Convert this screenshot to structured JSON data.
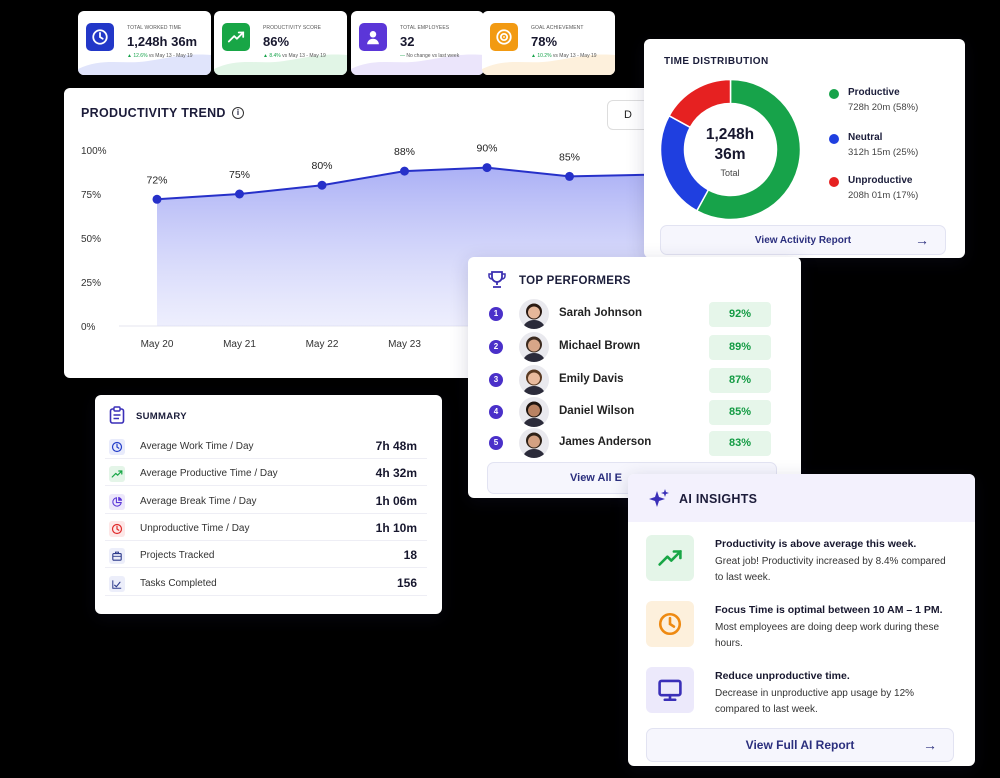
{
  "kpis": [
    {
      "label": "TOTAL WORKED TIME",
      "value": "1,248h 36m",
      "trend_up": "▲ 12.6%",
      "trend_text": "vs May 13 - May 19",
      "icon": "clock-icon",
      "color": "#2237c8",
      "wave": "#e0e4fb"
    },
    {
      "label": "PRODUCTIVITY SCORE",
      "value": "86%",
      "trend_up": "▲ 8.4%",
      "trend_text": "vs May 13 - May 19",
      "icon": "trend-up-icon",
      "color": "#18a646",
      "wave": "#e1f5e6"
    },
    {
      "label": "TOTAL EMPLOYEES",
      "value": "32",
      "trend_up": "—",
      "trend_text": "No change vs last week",
      "icon": "user-icon",
      "color": "#5b36d8",
      "wave": "#ebe5fb"
    },
    {
      "label": "GOAL ACHIEVEMENT",
      "value": "78%",
      "trend_up": "▲ 10.2%",
      "trend_text": "vs May 13 - May 19",
      "icon": "target-icon",
      "color": "#f29a12",
      "wave": "#fdf0dc"
    }
  ],
  "trend": {
    "title": "PRODUCTIVITY TREND",
    "range_button": "D",
    "chart_data": {
      "type": "area",
      "categories": [
        "May 20",
        "May 21",
        "May 22",
        "May 23",
        "",
        "",
        ""
      ],
      "values": [
        72,
        75,
        80,
        88,
        90,
        85,
        86
      ],
      "labels": [
        "72%",
        "75%",
        "80%",
        "88%",
        "90%",
        "85%",
        ""
      ],
      "yticks": [
        "0%",
        "25%",
        "50%",
        "75%",
        "100%"
      ],
      "ylim": [
        0,
        100
      ]
    }
  },
  "distribution": {
    "title": "TIME DISTRIBUTION",
    "total_value_line1": "1,248h",
    "total_value_line2": "36m",
    "total_label": "Total",
    "chart_data": {
      "type": "pie",
      "slices": [
        {
          "name": "Productive",
          "detail": "728h 20m (58%)",
          "value": 58,
          "color": "#17a34a"
        },
        {
          "name": "Neutral",
          "detail": "312h 15m (25%)",
          "value": 25,
          "color": "#1f3fe0"
        },
        {
          "name": "Unproductive",
          "detail": "208h 01m (17%)",
          "value": 17,
          "color": "#e62121"
        }
      ]
    },
    "button": "View Activity Report"
  },
  "performers": {
    "title": "TOP PERFORMERS",
    "rows": [
      {
        "rank": "1",
        "name": "Sarah Johnson",
        "score": "92%",
        "skin": "#e6b79a",
        "hair": "#2a1a12"
      },
      {
        "rank": "2",
        "name": "Michael Brown",
        "score": "89%",
        "skin": "#d7a688",
        "hair": "#3b2a1f"
      },
      {
        "rank": "3",
        "name": "Emily Davis",
        "score": "87%",
        "skin": "#e9bb9e",
        "hair": "#5a3a22"
      },
      {
        "rank": "4",
        "name": "Daniel Wilson",
        "score": "85%",
        "skin": "#b98262",
        "hair": "#1f1510"
      },
      {
        "rank": "5",
        "name": "James Anderson",
        "score": "83%",
        "skin": "#d3a182",
        "hair": "#2f2218"
      }
    ],
    "button": "View All E"
  },
  "summary": {
    "title": "SUMMARY",
    "rows": [
      {
        "label": "Average Work Time / Day",
        "value": "7h 48m",
        "icon": "clock-icon",
        "color": "#2640c9",
        "bg": "#e8ebfb"
      },
      {
        "label": "Average Productive Time / Day",
        "value": "4h 32m",
        "icon": "trend-up-icon",
        "color": "#18a646",
        "bg": "#e4f5e8"
      },
      {
        "label": "Average Break Time / Day",
        "value": "1h 06m",
        "icon": "pie-icon",
        "color": "#5b36d8",
        "bg": "#ece7fb"
      },
      {
        "label": "Unproductive Time / Day",
        "value": "1h 10m",
        "icon": "clock-icon",
        "color": "#e02b2b",
        "bg": "#fde7e7"
      },
      {
        "label": "Projects Tracked",
        "value": "18",
        "icon": "briefcase-icon",
        "color": "#2d3a8c",
        "bg": "#eceefa"
      },
      {
        "label": "Tasks Completed",
        "value": "156",
        "icon": "checklist-icon",
        "color": "#2d3a8c",
        "bg": "#eceefa"
      }
    ]
  },
  "ai": {
    "title": "AI INSIGHTS",
    "items": [
      {
        "heading": "Productivity is above average this week.",
        "text": "Great job! Productivity increased by 8.4% compared to last week.",
        "icon": "trend-up-icon",
        "color": "#18a646",
        "bg": "#e4f5e8"
      },
      {
        "heading": "Focus Time is optimal between 10 AM – 1 PM.",
        "text": "Most employees are doing deep work during these hours.",
        "icon": "clock-icon",
        "color": "#ee8a12",
        "bg": "#fdf0dc"
      },
      {
        "heading": "Reduce unproductive time.",
        "text": "Decrease in unproductive app usage by 12% compared to last week.",
        "icon": "monitor-icon",
        "color": "#3a2fb8",
        "bg": "#ece9fb"
      }
    ],
    "button": "View Full AI Report"
  }
}
